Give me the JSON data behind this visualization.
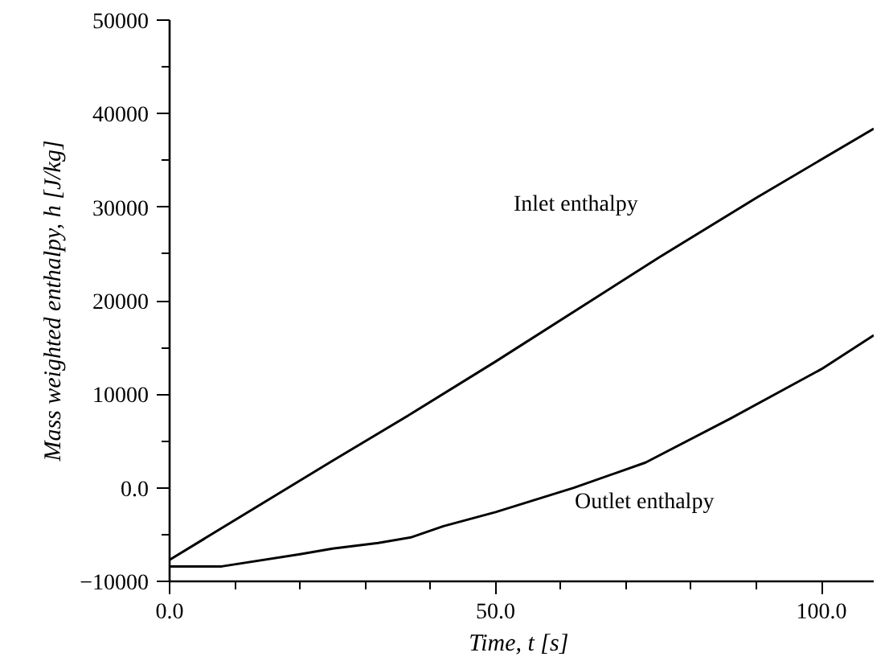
{
  "chart_data": {
    "type": "line",
    "xlabel": "Time, t  [s]",
    "ylabel": "Mass weighted enthalpy, h [J/kg]",
    "xlim": [
      0,
      108
    ],
    "ylim": [
      -10000,
      50000
    ],
    "xticks": [
      {
        "value": 0,
        "label": "0.0"
      },
      {
        "value": 50,
        "label": "50.0"
      },
      {
        "value": 100,
        "label": "100.0"
      }
    ],
    "yticks": [
      -10000,
      {
        "value": 0,
        "label": "0.0"
      },
      10000,
      20000,
      30000,
      40000,
      50000
    ],
    "grid": false,
    "marker": "none",
    "line_style": "solid",
    "series": [
      {
        "color": "#000000",
        "x": [
          0,
          25,
          37,
          50,
          75,
          90,
          108
        ],
        "values": [
          -7700,
          2900,
          7900,
          13500,
          24600,
          31000,
          38400
        ]
      },
      {
        "color": "#000000",
        "x": [
          0,
          8,
          20,
          25,
          32,
          37,
          42,
          50,
          62,
          73,
          86,
          100,
          108
        ],
        "values": [
          -8400,
          -8400,
          -7100,
          -6500,
          -5900,
          -5300,
          -4100,
          -2600,
          0,
          2700,
          7400,
          12700,
          16300
        ]
      }
    ],
    "annotations": [
      "Inlet enthalpy",
      "Outlet enthalpy"
    ]
  }
}
